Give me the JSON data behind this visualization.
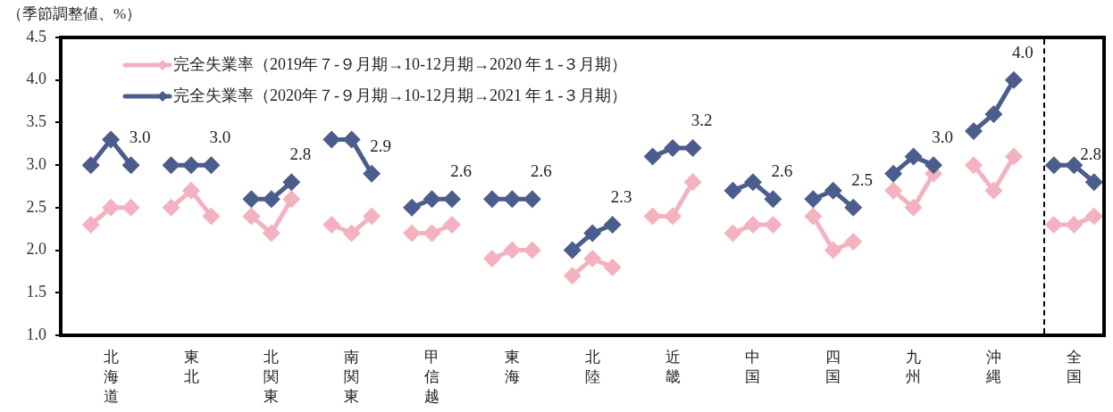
{
  "chart_data": {
    "type": "line",
    "ylabel": "（季節調整値、%）",
    "categories": [
      null,
      "北海道",
      null,
      null,
      null,
      "東北",
      null,
      null,
      null,
      "北関東",
      null,
      null,
      null,
      "南関東",
      null,
      null,
      null,
      "甲信越",
      null,
      null,
      null,
      "東海",
      null,
      null,
      null,
      "北陸",
      null,
      null,
      null,
      "近畿",
      null,
      null,
      null,
      "中国",
      null,
      null,
      null,
      "四国",
      null,
      null,
      null,
      "九州",
      null,
      null,
      null,
      "沖縄",
      null,
      null,
      null,
      "全国",
      null
    ],
    "ylim": [
      1.0,
      4.5
    ],
    "yticks": [
      {
        "value": 1,
        "label": "1.0"
      },
      1.5,
      {
        "value": 2,
        "label": "2.0"
      },
      2.5,
      {
        "value": 3,
        "label": "3.0"
      },
      3.5,
      {
        "value": 4,
        "label": "4.0"
      },
      4.5
    ],
    "series": [
      {
        "name": "完全失業率（2019年７-９月期→10-12月期→2020 年１-３月期）",
        "color": "#f4b2c1",
        "values": [
          2.3,
          2.5,
          2.5,
          null,
          2.5,
          2.7,
          2.4,
          null,
          2.4,
          2.2,
          2.6,
          null,
          2.3,
          2.2,
          2.4,
          null,
          2.2,
          2.2,
          2.3,
          null,
          1.9,
          2.0,
          2.0,
          null,
          1.7,
          1.9,
          1.8,
          null,
          2.4,
          2.4,
          2.8,
          null,
          2.2,
          2.3,
          2.3,
          null,
          2.4,
          2.0,
          2.1,
          null,
          2.7,
          2.5,
          2.9,
          null,
          3.0,
          2.7,
          3.1,
          null,
          2.3,
          2.3,
          2.4
        ]
      },
      {
        "name": "完全失業率（2020年７-９月期→10-12月期→2021 年１-３月期）",
        "color": "#4b5d8c",
        "values": [
          3.0,
          3.3,
          3.0,
          null,
          3.0,
          3.0,
          3.0,
          null,
          2.6,
          2.6,
          2.8,
          null,
          3.3,
          3.3,
          2.9,
          null,
          2.5,
          2.6,
          2.6,
          null,
          2.6,
          2.6,
          2.6,
          null,
          2.0,
          2.2,
          2.3,
          null,
          3.1,
          3.2,
          3.2,
          null,
          2.7,
          2.8,
          2.6,
          null,
          2.6,
          2.7,
          2.5,
          null,
          2.9,
          3.1,
          3.0,
          null,
          3.4,
          3.6,
          4.0,
          null,
          3.0,
          3.0,
          2.8
        ],
        "value_labels": [
          null,
          null,
          "3.0",
          null,
          null,
          null,
          "3.0",
          null,
          null,
          null,
          "2.8",
          null,
          null,
          null,
          "2.9",
          null,
          null,
          null,
          "2.6",
          null,
          null,
          null,
          "2.6",
          null,
          null,
          null,
          "2.3",
          null,
          null,
          null,
          "3.2",
          null,
          null,
          null,
          "2.6",
          null,
          null,
          null,
          "2.5",
          null,
          null,
          null,
          "3.0",
          null,
          null,
          null,
          "4.0",
          null,
          null,
          null,
          "2.8"
        ]
      }
    ],
    "legend": "top left",
    "marker": "diamond",
    "line_style": "solid"
  }
}
